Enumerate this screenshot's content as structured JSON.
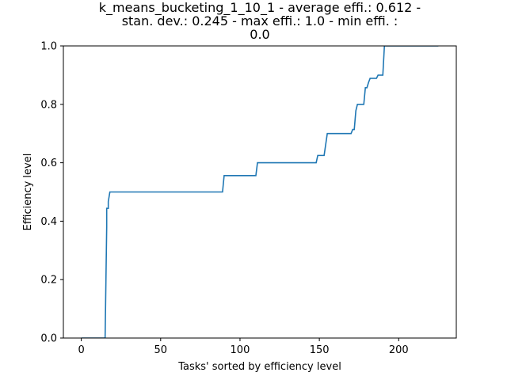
{
  "chart_data": {
    "type": "line",
    "title_lines": [
      "k_means_bucketing_1_10_1 - average effi.: 0.612 -",
      "stan. dev.: 0.245 - max effi.: 1.0 - min effi. :",
      "0.0"
    ],
    "xlabel": "Tasks' sorted by efficiency level",
    "ylabel": "Efficiency level",
    "xlim": [
      -11.3,
      236.3
    ],
    "ylim": [
      0,
      1.0
    ],
    "xticks": [
      0,
      50,
      100,
      150,
      200
    ],
    "xtick_labels": [
      "0",
      "50",
      "100",
      "150",
      "200"
    ],
    "yticks": [
      0.0,
      0.2,
      0.4,
      0.6,
      0.8,
      1.0
    ],
    "ytick_labels": [
      "0.0",
      "0.2",
      "0.4",
      "0.6",
      "0.8",
      "1.0"
    ],
    "grid": false,
    "series": [
      {
        "color": "#1f77b4",
        "x": [
          0,
          15,
          16,
          16,
          17,
          17,
          18,
          89,
          90,
          110,
          111,
          148,
          149,
          153,
          155,
          170,
          171,
          172,
          173,
          174,
          178,
          179,
          180,
          181,
          182,
          183,
          186,
          187,
          190,
          191,
          225
        ],
        "y": [
          0.0,
          0.0,
          0.38,
          0.444,
          0.444,
          0.467,
          0.5,
          0.5,
          0.556,
          0.556,
          0.6,
          0.6,
          0.625,
          0.625,
          0.7,
          0.7,
          0.714,
          0.714,
          0.778,
          0.8,
          0.8,
          0.857,
          0.857,
          0.875,
          0.889,
          0.889,
          0.889,
          0.9,
          0.9,
          1.0,
          1.0
        ]
      }
    ]
  }
}
